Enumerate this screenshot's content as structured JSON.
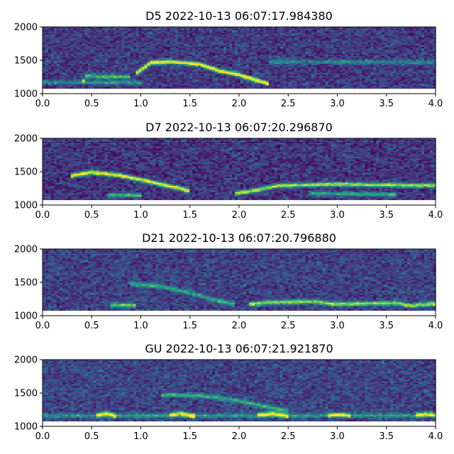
{
  "chart_data": [
    {
      "type": "heatmap",
      "title": "D5 2022-10-13 06:07:17.984380",
      "xlabel": "",
      "ylabel": "",
      "xlim": [
        0.0,
        4.0
      ],
      "ylim": [
        1000,
        2000
      ],
      "data_ylim": [
        1080,
        2000
      ],
      "xticks": [
        "0.0",
        "0.5",
        "1.0",
        "1.5",
        "2.0",
        "2.5",
        "3.0",
        "3.5",
        "4.0"
      ],
      "yticks": [
        "1000",
        "1500",
        "2000"
      ],
      "colormap": "viridis",
      "background_level": 0.12,
      "tracks": [
        {
          "points": [
            [
              0.4,
              1150
            ],
            [
              0.45,
              1270
            ],
            [
              0.55,
              1255
            ],
            [
              0.9,
              1250
            ]
          ],
          "intensity": 0.55
        },
        {
          "points": [
            [
              0.95,
              1300
            ],
            [
              1.1,
              1460
            ],
            [
              1.3,
              1480
            ],
            [
              1.6,
              1440
            ],
            [
              1.8,
              1340
            ],
            [
              2.0,
              1280
            ],
            [
              2.2,
              1190
            ],
            [
              2.3,
              1150
            ]
          ],
          "intensity": 0.95
        },
        {
          "points": [
            [
              0.0,
              1170
            ],
            [
              1.0,
              1165
            ]
          ],
          "intensity": 0.35
        },
        {
          "points": [
            [
              2.3,
              1480
            ],
            [
              4.0,
              1470
            ]
          ],
          "intensity": 0.3
        }
      ]
    },
    {
      "type": "heatmap",
      "title": "D7 2022-10-13 06:07:20.296870",
      "xlabel": "",
      "ylabel": "",
      "xlim": [
        0.0,
        4.0
      ],
      "ylim": [
        1000,
        2000
      ],
      "data_ylim": [
        1080,
        2000
      ],
      "xticks": [
        "0.0",
        "0.5",
        "1.0",
        "1.5",
        "2.0",
        "2.5",
        "3.0",
        "3.5",
        "4.0"
      ],
      "yticks": [
        "1000",
        "1500",
        "2000"
      ],
      "colormap": "viridis",
      "background_level": 0.1,
      "tracks": [
        {
          "points": [
            [
              0.3,
              1440
            ],
            [
              0.5,
              1490
            ],
            [
              0.8,
              1440
            ],
            [
              1.0,
              1380
            ],
            [
              1.2,
              1310
            ],
            [
              1.4,
              1250
            ],
            [
              1.5,
              1200
            ]
          ],
          "intensity": 0.9
        },
        {
          "points": [
            [
              0.65,
              1150
            ],
            [
              1.0,
              1145
            ]
          ],
          "intensity": 0.5
        },
        {
          "points": [
            [
              1.95,
              1170
            ],
            [
              2.1,
              1200
            ],
            [
              2.4,
              1290
            ],
            [
              3.0,
              1310
            ],
            [
              3.5,
              1300
            ],
            [
              4.0,
              1290
            ]
          ],
          "intensity": 0.75
        },
        {
          "points": [
            [
              2.7,
              1170
            ],
            [
              3.6,
              1160
            ]
          ],
          "intensity": 0.45
        }
      ]
    },
    {
      "type": "heatmap",
      "title": "D21 2022-10-13 06:07:20.796880",
      "xlabel": "",
      "ylabel": "",
      "xlim": [
        0.0,
        4.0
      ],
      "ylim": [
        1000,
        2000
      ],
      "data_ylim": [
        1080,
        2000
      ],
      "xticks": [
        "0.0",
        "0.5",
        "1.0",
        "1.5",
        "2.0",
        "2.5",
        "3.0",
        "3.5",
        "4.0"
      ],
      "yticks": [
        "1000",
        "1500",
        "2000"
      ],
      "colormap": "viridis",
      "background_level": 0.14,
      "tracks": [
        {
          "points": [
            [
              0.9,
              1480
            ],
            [
              1.2,
              1440
            ],
            [
              1.5,
              1340
            ],
            [
              1.8,
              1220
            ],
            [
              1.95,
              1170
            ]
          ],
          "intensity": 0.45
        },
        {
          "points": [
            [
              0.7,
              1160
            ],
            [
              0.95,
              1150
            ]
          ],
          "intensity": 0.6
        },
        {
          "points": [
            [
              2.1,
              1170
            ],
            [
              2.3,
              1200
            ],
            [
              2.8,
              1210
            ],
            [
              2.95,
              1170
            ],
            [
              3.6,
              1190
            ],
            [
              3.75,
              1150
            ],
            [
              4.0,
              1180
            ]
          ],
          "intensity": 0.7
        }
      ]
    },
    {
      "type": "heatmap",
      "title": "GU 2022-10-13 06:07:21.921870",
      "xlabel": "",
      "ylabel": "",
      "xlim": [
        0.0,
        4.0
      ],
      "ylim": [
        1000,
        2000
      ],
      "data_ylim": [
        1080,
        2000
      ],
      "xticks": [
        "0.0",
        "0.5",
        "1.0",
        "1.5",
        "2.0",
        "2.5",
        "3.0",
        "3.5",
        "4.0"
      ],
      "yticks": [
        "1000",
        "1500",
        "2000"
      ],
      "colormap": "viridis",
      "background_level": 0.15,
      "tracks": [
        {
          "points": [
            [
              1.2,
              1470
            ],
            [
              1.6,
              1460
            ],
            [
              1.9,
              1410
            ],
            [
              2.2,
              1320
            ],
            [
              2.5,
              1230
            ]
          ],
          "intensity": 0.45
        },
        {
          "points": [
            [
              0.55,
              1160
            ],
            [
              0.65,
              1200
            ],
            [
              0.75,
              1150
            ]
          ],
          "intensity": 0.7
        },
        {
          "points": [
            [
              1.3,
              1170
            ],
            [
              1.4,
              1200
            ],
            [
              1.55,
              1150
            ]
          ],
          "intensity": 0.7
        },
        {
          "points": [
            [
              2.2,
              1170
            ],
            [
              2.35,
              1200
            ],
            [
              2.5,
              1150
            ]
          ],
          "intensity": 0.7
        },
        {
          "points": [
            [
              2.9,
              1160
            ],
            [
              3.05,
              1180
            ],
            [
              3.15,
              1150
            ]
          ],
          "intensity": 0.6
        },
        {
          "points": [
            [
              3.8,
              1170
            ],
            [
              3.95,
              1190
            ],
            [
              4.0,
              1160
            ]
          ],
          "intensity": 0.6
        },
        {
          "points": [
            [
              0.0,
              1160
            ],
            [
              4.0,
              1160
            ]
          ],
          "intensity": 0.35
        }
      ]
    }
  ]
}
